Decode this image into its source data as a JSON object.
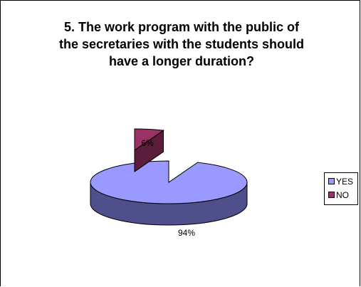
{
  "chart_data": {
    "type": "pie",
    "title_lines": [
      "5. The work program with the public of",
      "the secretaries with the students should",
      "have a longer duration?"
    ],
    "categories": [
      "YES",
      "NO"
    ],
    "values": [
      94,
      6
    ],
    "data_labels": [
      "94%",
      "6%"
    ],
    "colors": [
      "#9999FF",
      "#993366"
    ],
    "side_colors": [
      "#4F4F8B",
      "#5A1E3C"
    ],
    "three_d": true,
    "exploded": "NO",
    "legend_position": "right"
  }
}
